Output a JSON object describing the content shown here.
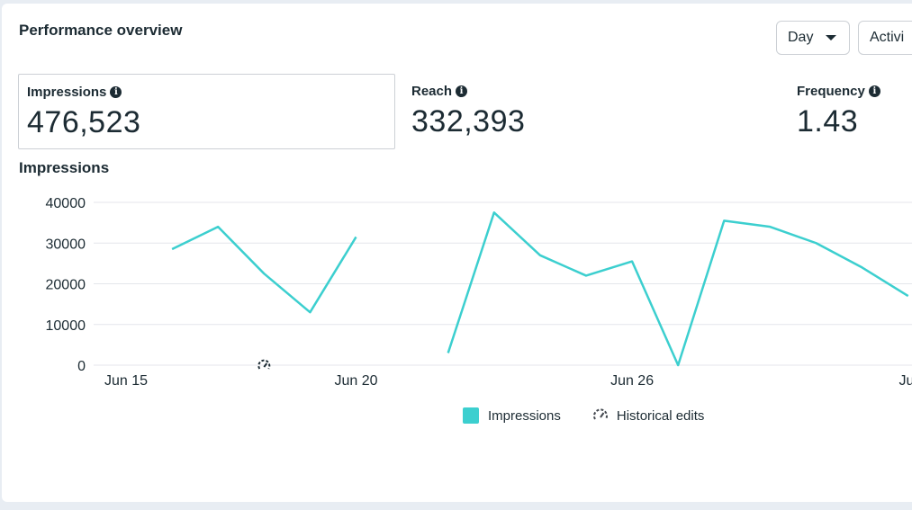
{
  "header": {
    "title": "Performance overview",
    "day_label": "Day",
    "activity_label": "Activi"
  },
  "metrics": [
    {
      "label": "Impressions",
      "value": "476,523"
    },
    {
      "label": "Reach",
      "value": "332,393"
    },
    {
      "label": "Frequency",
      "value": "1.43"
    }
  ],
  "colors": {
    "series": "#3ccfcf",
    "grid": "#e4e6eb",
    "text": "#1c2b33"
  },
  "icons": {
    "info": "info-icon",
    "historical": "historical-edits-icon",
    "caret": "caret-down-icon"
  },
  "chart_data": {
    "type": "line",
    "title": "Impressions",
    "yticks": [
      0,
      10000,
      20000,
      30000,
      40000
    ],
    "ylim": [
      0,
      40000
    ],
    "xticks": [
      "Jun 15",
      "Jun 20",
      "Jun 26",
      "Jul"
    ],
    "grid": true,
    "legend": "bottom",
    "series": [
      {
        "name": "Impressions",
        "points": [
          {
            "x": "Jun 16",
            "y": 28500
          },
          {
            "x": "Jun 17",
            "y": 34000
          },
          {
            "x": "Jun 18",
            "y": 22500
          },
          {
            "x": "Jun 19",
            "y": 13000
          },
          {
            "x": "Jun 20",
            "y": 31500
          },
          {
            "x": "Jun 21",
            "y": null
          },
          {
            "x": "Jun 22",
            "y": 3000
          },
          {
            "x": "Jun 23",
            "y": 37500
          },
          {
            "x": "Jun 24",
            "y": 27000
          },
          {
            "x": "Jun 25",
            "y": 22000
          },
          {
            "x": "Jun 26",
            "y": 25500
          },
          {
            "x": "Jun 27",
            "y": 0
          },
          {
            "x": "Jun 28",
            "y": 35500
          },
          {
            "x": "Jun 29",
            "y": 34000
          },
          {
            "x": "Jun 30",
            "y": 30000
          },
          {
            "x": "Jul 1",
            "y": 24000
          },
          {
            "x": "Jul 2",
            "y": 17000
          }
        ]
      }
    ],
    "legend_items": [
      "Impressions",
      "Historical edits"
    ]
  }
}
